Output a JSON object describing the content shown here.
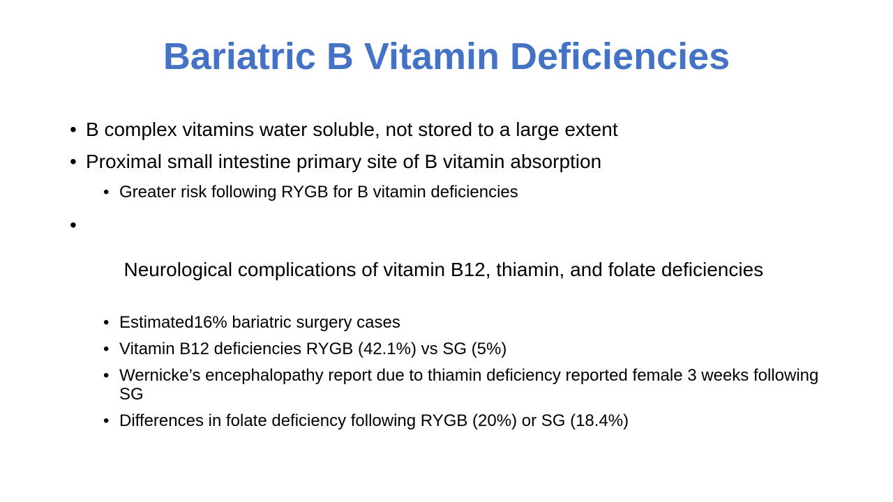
{
  "slide": {
    "title": "Bariatric B Vitamin Deficiencies",
    "title_color": "#4472C4",
    "bullet_glyph": "•",
    "bullets": [
      {
        "text": "B complex vitamins water soluble, not stored to a large extent"
      },
      {
        "text": "Proximal small intestine primary site of B vitamin absorption"
      },
      {
        "text": "Greater risk following RYGB for B vitamin deficiencies"
      },
      {
        "text": " Neurological complications of vitamin B12, thiamin, and folate deficiencies"
      },
      {
        "text": "Estimated16% bariatric surgery cases"
      },
      {
        "text": "Vitamin B12 deficiencies RYGB (42.1%) vs SG (5%)"
      },
      {
        "text": "Wernicke’s encephalopathy report due to thiamin deficiency reported female 3 weeks following SG"
      },
      {
        "text": "Differences in folate deficiency following RYGB (20%) or SG (18.4%)"
      }
    ]
  }
}
